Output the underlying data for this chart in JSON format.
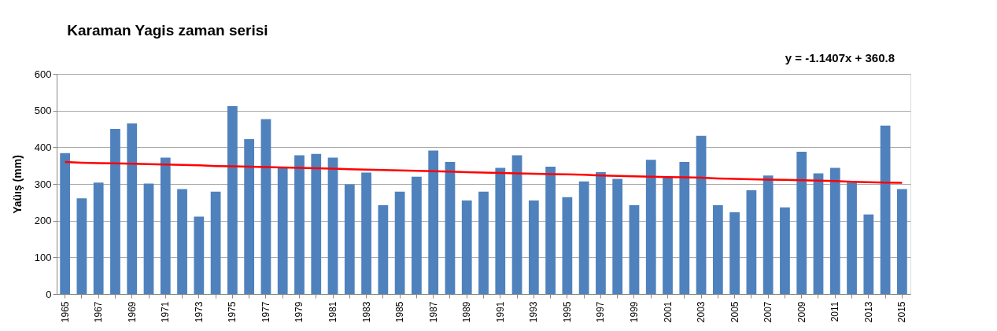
{
  "chart_data": {
    "type": "bar",
    "title": "Karaman Yagis zaman serisi",
    "ylabel": "Yaüış (mm)",
    "categories": [
      "1965",
      null,
      "1967",
      null,
      "1969",
      null,
      "1971",
      null,
      "1973",
      null,
      "1975",
      null,
      "1977",
      null,
      "1979",
      null,
      "1981",
      null,
      "1983",
      null,
      "1985",
      null,
      "1987",
      null,
      "1989",
      null,
      "1991",
      null,
      "1993",
      null,
      "1995",
      null,
      "1997",
      null,
      "1999",
      null,
      "2001",
      null,
      "2003",
      null,
      "2005",
      null,
      "2007",
      null,
      "2009",
      null,
      "2011",
      null,
      "2013",
      null,
      "2015"
    ],
    "series": [
      {
        "color": "#4f81bd",
        "values": [
          384,
          261,
          304,
          450,
          465,
          301,
          372,
          286,
          211,
          279,
          512,
          422,
          477,
          344,
          378,
          382,
          372,
          299,
          331,
          242,
          279,
          320,
          391,
          360,
          255,
          279,
          344,
          378,
          255,
          347,
          264,
          307,
          332,
          314,
          242,
          366,
          319,
          360,
          431,
          242,
          223,
          283,
          323,
          236,
          388,
          329,
          344,
          304,
          217,
          459,
          286
        ]
      },
      {
        "type": "line",
        "color": "#ff0000",
        "values": [
          360,
          358,
          357,
          356,
          355,
          354,
          353,
          352,
          351,
          349,
          348,
          347,
          346,
          345,
          344,
          343,
          342,
          340,
          339,
          338,
          337,
          336,
          335,
          334,
          332,
          331,
          330,
          329,
          328,
          327,
          326,
          325,
          323,
          322,
          321,
          320,
          319,
          318,
          317,
          315,
          314,
          313,
          312,
          311,
          310,
          309,
          308,
          306,
          305,
          304,
          303
        ]
      }
    ],
    "ylim": [
      0,
      600
    ],
    "yticks": [
      0,
      100,
      200,
      300,
      400,
      500,
      600
    ],
    "grid": "y",
    "legend": false,
    "annotations": [
      "y = -1.1407x + 360.8"
    ]
  }
}
